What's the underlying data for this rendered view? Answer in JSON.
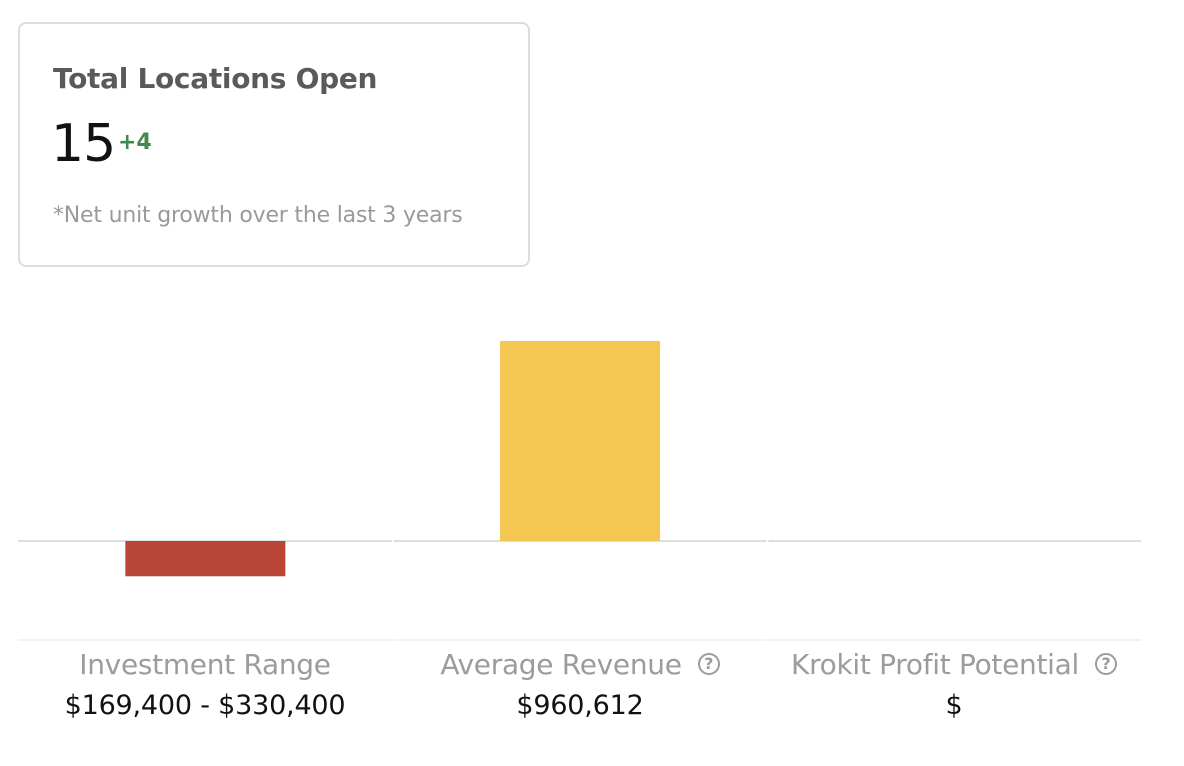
{
  "card": {
    "title": "Total Locations Open",
    "count": "15",
    "delta": "+4",
    "note": "*Net unit growth over the last 3 years",
    "delta_color": "#3f8a4c"
  },
  "metrics": [
    {
      "label": "Investment Range",
      "value": "$169,400 - $330,400",
      "has_help": false
    },
    {
      "label": "Average Revenue",
      "value": "$960,612",
      "has_help": true,
      "help_icon": "question-circle-icon"
    },
    {
      "label": "Krokit Profit Potential",
      "value": "$",
      "has_help": true,
      "help_icon": "question-circle-icon"
    }
  ],
  "chart_data": {
    "type": "bar",
    "categories": [
      "Investment Range",
      "Average Revenue",
      "Krokit Profit Potential"
    ],
    "values": [
      -169400,
      960612,
      0
    ],
    "colors": [
      "#b84535",
      "#f4c752",
      "#cccccc"
    ],
    "baseline": 0,
    "grid": false
  }
}
